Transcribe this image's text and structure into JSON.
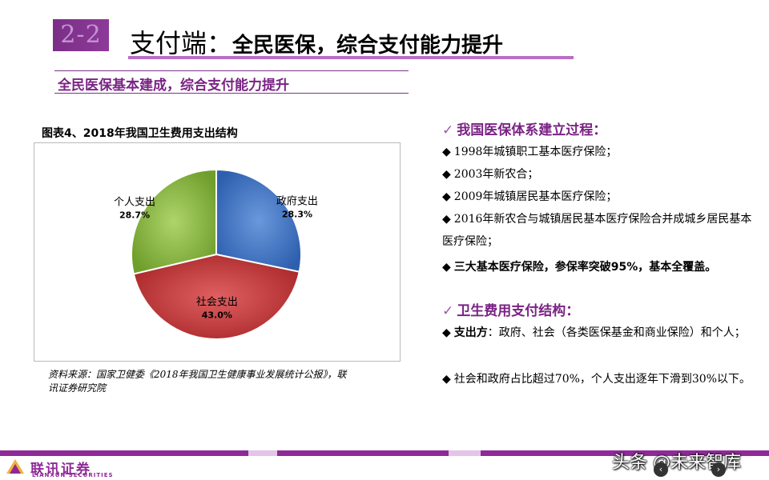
{
  "header": {
    "section_number": "2-2",
    "title_prefix": "支付端：",
    "title_rest": "全民医保，综合支付能力提升",
    "subtitle": "全民医保基本建成，综合支付能力提升"
  },
  "chart_title": "图表4、2018年我国卫生费用支出结构",
  "chart_data": {
    "type": "pie",
    "title": "图表4、2018年我国卫生费用支出结构",
    "slices": [
      {
        "label": "政府支出",
        "value": 28.3,
        "display": "28.3%",
        "color": "#3f74c2"
      },
      {
        "label": "社会支出",
        "value": 43.0,
        "display": "43.0%",
        "color": "#c9383a"
      },
      {
        "label": "个人支出",
        "value": 28.7,
        "display": "28.7%",
        "color": "#8cba45"
      }
    ]
  },
  "source": "资料来源：国家卫健委《2018年我国卫生健康事业发展统计公报》，联讯证券研究院",
  "section1": {
    "check": "✓",
    "heading": "我国医保体系建立过程：",
    "items": [
      "1998年城镇职工基本医疗保险；",
      "2003年新农合；",
      "2009年城镇居民基本医疗保险；",
      "2016年新农合与城镇居民基本医疗保险合并成城乡居民基本医疗保险；",
      "三大基本医疗保险，参保率突破95%，基本全覆盖。"
    ]
  },
  "section2": {
    "check": "✓",
    "heading": "卫生费用支付结构：",
    "item1_bold": "支出方",
    "item1_rest": "：政府、社会（各类医保基金和商业保险）和个人；",
    "item2": "社会和政府占比超过70%，个人支出逐年下滑到30%以下。"
  },
  "bullet_symbol": "◆",
  "footer": {
    "logo_cn": "联讯证券",
    "logo_en": "LIANXUN SECURITIES",
    "watermark": "头条 @未来智库",
    "prev_icon": "‹",
    "next_icon": "›"
  },
  "colors": {
    "brand_purple": "#8e2a97",
    "heading_purple": "#7a2384"
  }
}
